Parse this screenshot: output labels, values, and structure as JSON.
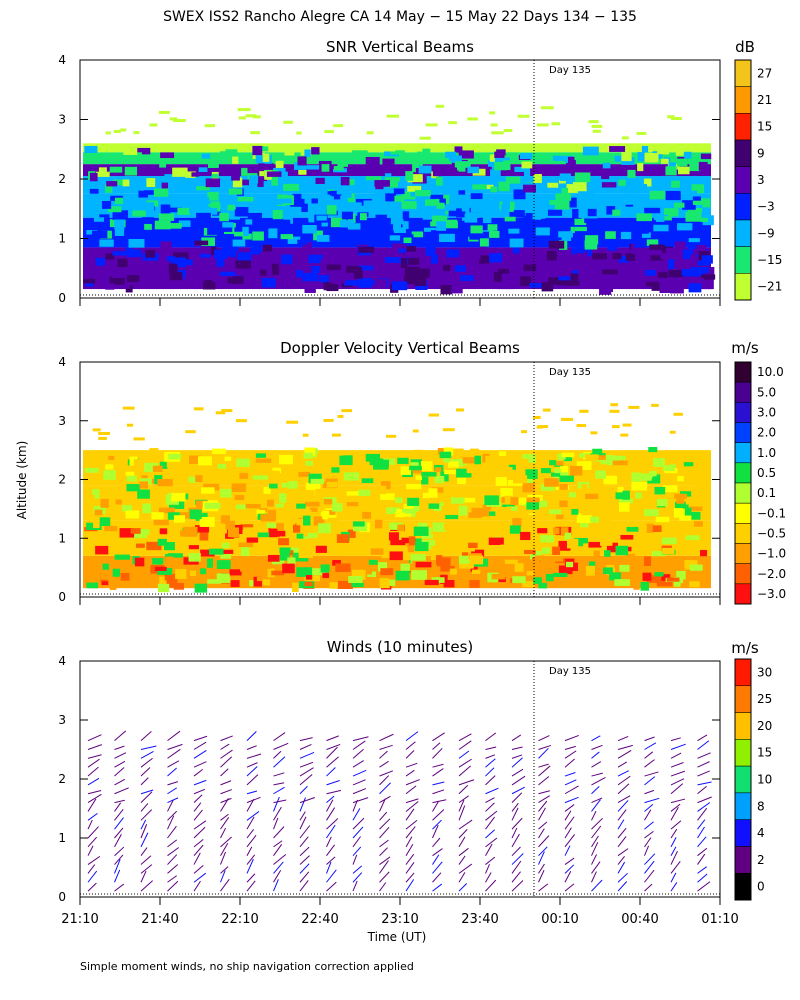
{
  "figure": {
    "title": "SWEX ISS2 Rancho Alegre CA  14 May − 15 May 22 Days 134 − 135",
    "ylabel": "Altitude (km)",
    "xlabel": "Time (UT)",
    "footnote": "Simple moment winds, no ship navigation correction applied",
    "day_marker": "Day 135",
    "x_ticks": [
      "21:10",
      "21:40",
      "22:10",
      "22:40",
      "23:10",
      "23:40",
      "00:10",
      "00:40",
      "01:10"
    ],
    "y_ticks": [
      "0",
      "1",
      "2",
      "3",
      "4"
    ]
  },
  "chart_data": [
    {
      "type": "heatmap",
      "title": "SNR Vertical Beams",
      "ylim": [
        0,
        4
      ],
      "colorbar": {
        "unit": "dB",
        "labels": [
          "27",
          "21",
          "15",
          "9",
          "3",
          "−3",
          "−9",
          "−15",
          "−21"
        ],
        "colors": [
          "#f3c41a",
          "#ff9900",
          "#ff2200",
          "#400070",
          "#5a00b0",
          "#0020ff",
          "#00b4ff",
          "#18e870",
          "#c0ff30"
        ]
      }
    },
    {
      "type": "heatmap",
      "title": "Doppler Velocity Vertical Beams",
      "ylim": [
        0,
        4
      ],
      "colorbar": {
        "unit": "m/s",
        "labels": [
          "10.0",
          "5.0",
          "3.0",
          "2.0",
          "1.0",
          "0.5",
          "0.1",
          "−0.1",
          "−0.5",
          "−1.0",
          "−2.0",
          "−3.0"
        ],
        "colors": [
          "#300030",
          "#4a0090",
          "#2a10d0",
          "#0040ff",
          "#00b0ff",
          "#10e040",
          "#b0ff30",
          "#ffff00",
          "#ffd000",
          "#ffa000",
          "#ff6000",
          "#ff1010"
        ]
      }
    },
    {
      "type": "scatter",
      "title": "Winds (10 minutes)",
      "ylim": [
        0,
        4
      ],
      "colorbar": {
        "unit": "m/s",
        "labels": [
          "30",
          "25",
          "20",
          "15",
          "10",
          "8",
          "4",
          "2",
          "0"
        ],
        "colors": [
          "#ff1a00",
          "#ff7a00",
          "#ffc000",
          "#90f000",
          "#10e070",
          "#00a0ff",
          "#1010ff",
          "#600080",
          "#000000"
        ]
      }
    }
  ]
}
